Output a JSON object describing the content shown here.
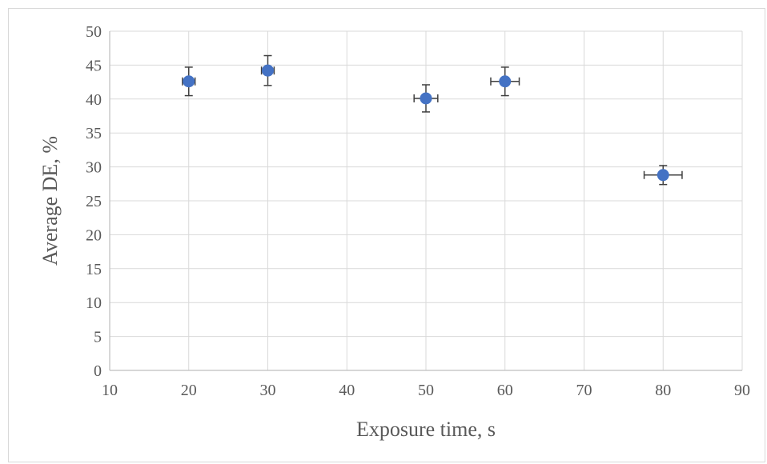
{
  "chart_data": {
    "type": "scatter",
    "title": "",
    "xlabel": "Exposure time, s",
    "ylabel": "Average DE, %",
    "xlim": [
      10,
      90
    ],
    "ylim": [
      0,
      50
    ],
    "xticks": [
      10,
      20,
      30,
      40,
      50,
      60,
      70,
      80,
      90
    ],
    "yticks": [
      0,
      5,
      10,
      15,
      20,
      25,
      30,
      35,
      40,
      45,
      50
    ],
    "grid": true,
    "legend": "none",
    "series": [
      {
        "color": "#4472c4",
        "points": [
          {
            "x": 20,
            "y": 42.6,
            "xerr": 0.8,
            "yerr": 2.1
          },
          {
            "x": 30,
            "y": 44.2,
            "xerr": 0.8,
            "yerr": 2.2
          },
          {
            "x": 50,
            "y": 40.1,
            "xerr": 1.5,
            "yerr": 2.0
          },
          {
            "x": 60,
            "y": 42.6,
            "xerr": 1.8,
            "yerr": 2.1
          },
          {
            "x": 80,
            "y": 28.8,
            "xerr": 2.4,
            "yerr": 1.4
          }
        ]
      }
    ],
    "colors": {
      "marker": "#4472c4",
      "gridline": "#d9d9d9",
      "axis": "#bfbfbf",
      "errorbar": "#404040",
      "text": "#595959"
    }
  }
}
